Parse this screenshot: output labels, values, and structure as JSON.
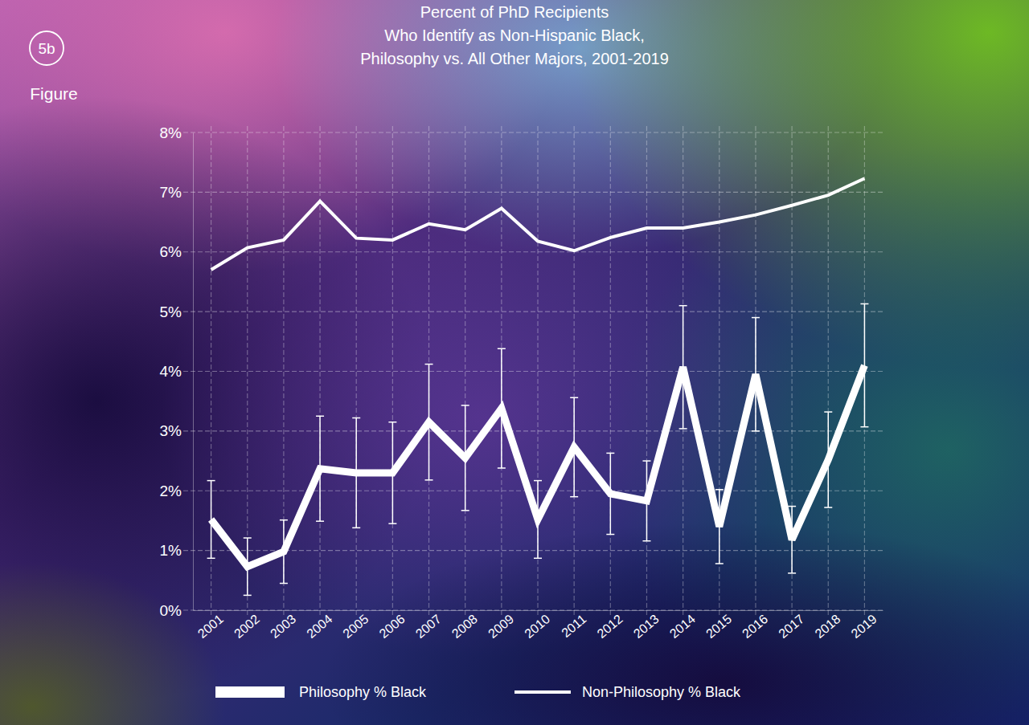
{
  "chart_data": {
    "type": "line",
    "title": "Percent of PhD Recipients\nWho Identify as Non-Hispanic Black,\nPhilosophy vs. All Other Majors, 2001-2019",
    "annotations": [
      "5b",
      "Figure"
    ],
    "categories": [
      "2001",
      "2002",
      "2003",
      "2004",
      "2005",
      "2006",
      "2007",
      "2008",
      "2009",
      "2010",
      "2011",
      "2012",
      "2013",
      "2014",
      "2015",
      "2016",
      "2017",
      "2018",
      "2019"
    ],
    "series": [
      {
        "name": "Philosophy % Black",
        "color": "#ffffff",
        "values": [
          1.52,
          0.73,
          0.98,
          2.37,
          2.3,
          2.3,
          3.15,
          2.55,
          3.38,
          1.52,
          2.73,
          1.95,
          1.83,
          4.07,
          1.4,
          3.95,
          1.18,
          2.52,
          4.1
        ],
        "error": [
          0.65,
          0.48,
          0.53,
          0.88,
          0.92,
          0.85,
          0.97,
          0.88,
          1.0,
          0.65,
          0.83,
          0.68,
          0.67,
          1.03,
          0.62,
          0.95,
          0.56,
          0.8,
          1.03
        ]
      },
      {
        "name": "Non-Philosophy % Black",
        "color": "#ffffff",
        "values": [
          5.7,
          6.07,
          6.2,
          6.85,
          6.23,
          6.2,
          6.47,
          6.37,
          6.73,
          6.18,
          6.02,
          6.24,
          6.4,
          6.4,
          6.5,
          6.62,
          6.78,
          6.95,
          7.23
        ]
      }
    ],
    "ylim": [
      0,
      8
    ],
    "yticks": [
      {
        "value": 0,
        "label": "0%"
      },
      {
        "value": 1,
        "label": "1%"
      },
      {
        "value": 2,
        "label": "2%"
      },
      {
        "value": 3,
        "label": "3%"
      },
      {
        "value": 4,
        "label": "4%"
      },
      {
        "value": 5,
        "label": "5%"
      },
      {
        "value": 6,
        "label": "6%"
      },
      {
        "value": 7,
        "label": "7%"
      },
      {
        "value": 8,
        "label": "8%"
      }
    ],
    "grid": true
  }
}
